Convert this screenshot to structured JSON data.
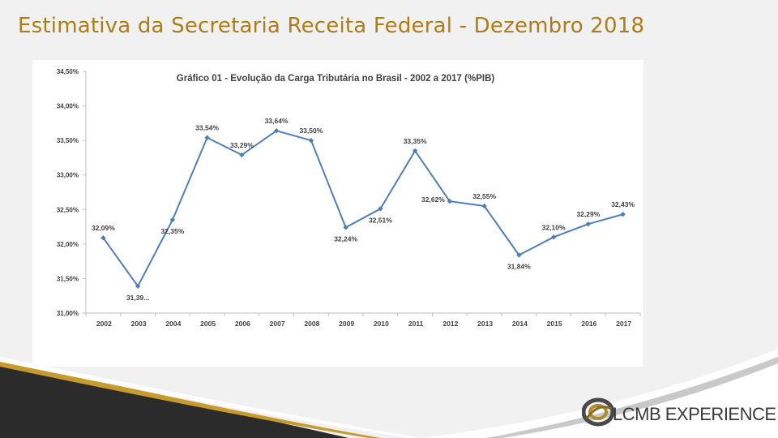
{
  "slide": {
    "title": "Estimativa da Secretaria Receita Federal - Dezembro 2018"
  },
  "logo": {
    "text": "LCMB EXPERIENCE"
  },
  "chart_data": {
    "type": "line",
    "title": "Gráfico 01 - Evolução da Carga Tributária no Brasil - 2002 a 2017 (%PIB)",
    "xlabel": "",
    "ylabel": "",
    "categories": [
      "2002",
      "2003",
      "2004",
      "2005",
      "2006",
      "2007",
      "2008",
      "2009",
      "2010",
      "2011",
      "2012",
      "2013",
      "2014",
      "2015",
      "2016",
      "2017"
    ],
    "values": [
      32.09,
      31.39,
      32.35,
      33.54,
      33.29,
      33.64,
      33.5,
      32.24,
      32.51,
      33.35,
      32.62,
      32.55,
      31.84,
      32.1,
      32.29,
      32.43
    ],
    "data_labels": [
      "32,09%",
      "31,39...",
      "32,35%",
      "33,54%",
      "33,29%",
      "33,64%",
      "33,50%",
      "32,24%",
      "32,51%",
      "33,35%",
      "32,62%",
      "32,55%",
      "31,84%",
      "32,10%",
      "32,29%",
      "32,43%"
    ],
    "label_positions": [
      "above",
      "below",
      "below",
      "above",
      "above",
      "above",
      "above",
      "below",
      "below",
      "above",
      "left",
      "above",
      "below",
      "above",
      "above",
      "above"
    ],
    "y_ticks": [
      31.0,
      31.5,
      32.0,
      32.5,
      33.0,
      33.5,
      34.0,
      34.5
    ],
    "y_tick_labels": [
      "31,00%",
      "31,50%",
      "32,00%",
      "32,50%",
      "33,00%",
      "33,50%",
      "34,00%",
      "34,50%"
    ],
    "ylim": [
      31.0,
      34.5
    ],
    "grid": false,
    "legend": "none",
    "line_color": "#4f7fb4",
    "marker_color": "#4f7fb4"
  }
}
